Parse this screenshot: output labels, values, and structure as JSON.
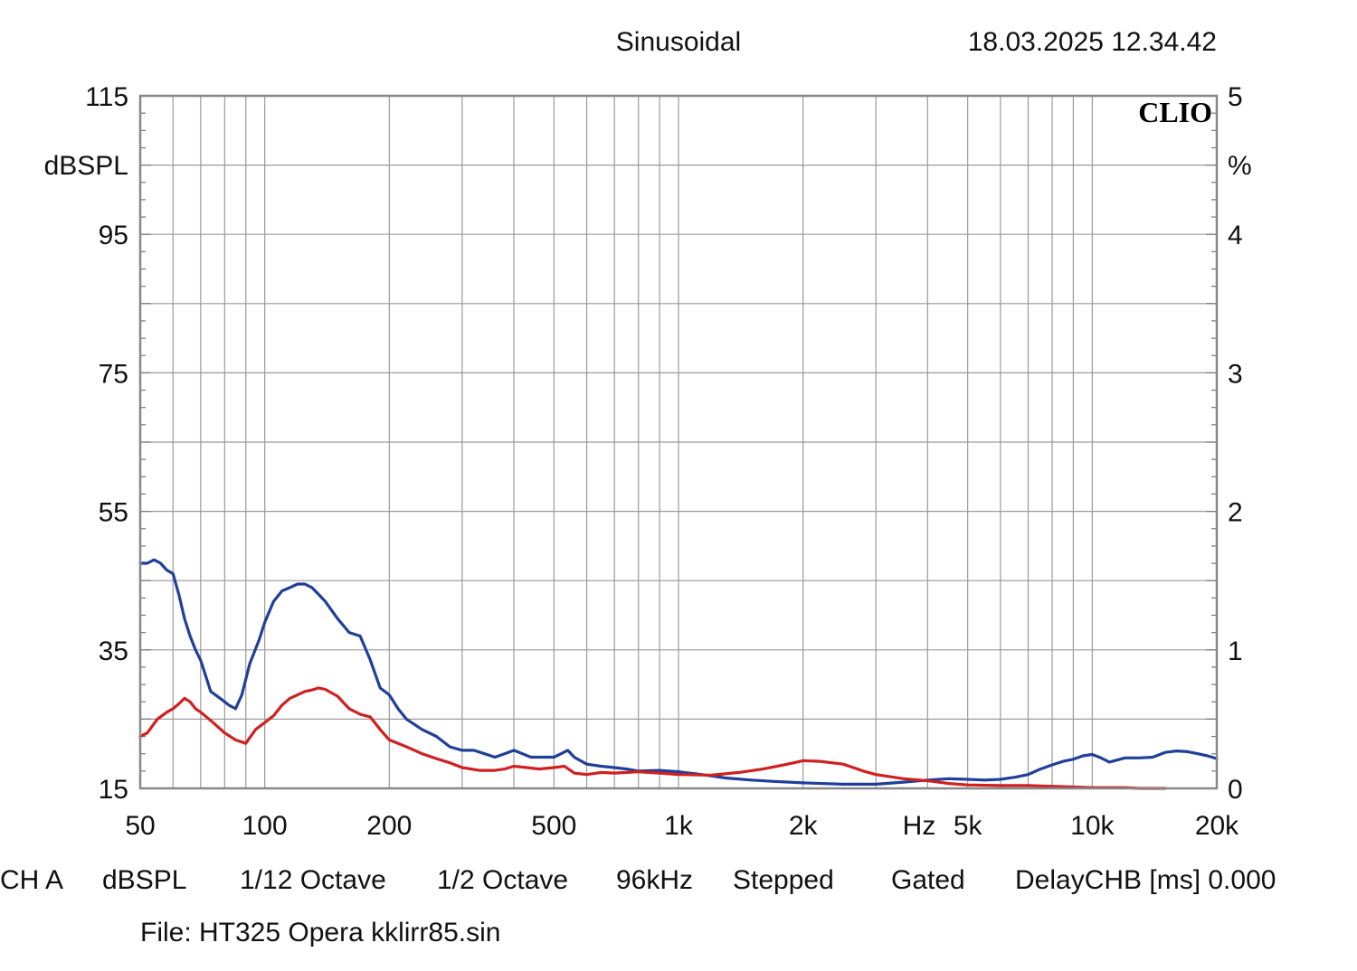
{
  "header": {
    "title": "Sinusoidal",
    "timestamp": "18.03.2025 12.34.42",
    "brand": "CLIO"
  },
  "footer": {
    "settings": [
      "CH A",
      "dBSPL",
      "1/12 Octave",
      "1/2 Octave",
      "96kHz",
      "Stepped",
      "Gated",
      "DelayCHB [ms] 0.000"
    ],
    "file": "File: HT325 Opera kklirr85.sin"
  },
  "chart_data": {
    "type": "line",
    "x_scale": "log",
    "xlim": [
      50,
      20000
    ],
    "ylim": [
      15,
      115
    ],
    "y2lim": [
      0,
      5
    ],
    "grid": true,
    "ylabel": "dBSPL",
    "y2label": "%",
    "xlabel": "Hz",
    "x_ticks": [
      {
        "value": 50,
        "label": "50"
      },
      {
        "value": 100,
        "label": "100"
      },
      {
        "value": 200,
        "label": "200"
      },
      {
        "value": 500,
        "label": "500"
      },
      {
        "value": 1000,
        "label": "1k"
      },
      {
        "value": 2000,
        "label": "2k"
      },
      {
        "value": 5000,
        "label": "5k"
      },
      {
        "value": 10000,
        "label": "10k"
      },
      {
        "value": 20000,
        "label": "20k"
      }
    ],
    "y_ticks": [
      115,
      95,
      75,
      55,
      35,
      15
    ],
    "y2_ticks": [
      5,
      4,
      3,
      2,
      1,
      0
    ],
    "series": [
      {
        "color": "#1f3f9a",
        "x": [
          50,
          52,
          54,
          56,
          58,
          60,
          62,
          64,
          66,
          68,
          70,
          74,
          78,
          82,
          85,
          88,
          92,
          97,
          100,
          105,
          110,
          115,
          120,
          125,
          130,
          135,
          140,
          150,
          160,
          170,
          180,
          190,
          200,
          210,
          220,
          240,
          260,
          280,
          300,
          320,
          340,
          360,
          380,
          400,
          420,
          440,
          460,
          480,
          500,
          520,
          540,
          560,
          600,
          650,
          700,
          750,
          800,
          900,
          1000,
          1100,
          1200,
          1300,
          1500,
          1700,
          2000,
          2500,
          3000,
          3500,
          4000,
          4500,
          5000,
          5500,
          6000,
          6500,
          7000,
          7500,
          8000,
          8500,
          9000,
          9500,
          10000,
          10500,
          11000,
          12000,
          13000,
          14000,
          15000,
          16000,
          17000,
          18000,
          19000,
          20000
        ],
        "values": [
          47.5,
          47.5,
          48,
          47.5,
          46.5,
          46,
          43,
          39.5,
          37,
          35,
          33.5,
          29,
          28,
          27,
          26.5,
          28.5,
          33,
          36.5,
          39,
          42,
          43.5,
          44,
          44.5,
          44.5,
          44,
          43,
          42,
          39.5,
          37.5,
          37,
          33.5,
          29.5,
          28.5,
          26.5,
          25,
          23.5,
          22.5,
          21,
          20.5,
          20.5,
          20,
          19.5,
          20,
          20.5,
          20,
          19.5,
          19.5,
          19.5,
          19.5,
          20,
          20.5,
          19.5,
          18.5,
          18.2,
          18,
          17.8,
          17.5,
          17.6,
          17.4,
          17.1,
          16.8,
          16.5,
          16.2,
          16,
          15.8,
          15.6,
          15.6,
          15.9,
          16.2,
          16.4,
          16.3,
          16.2,
          16.3,
          16.6,
          17,
          17.8,
          18.4,
          18.9,
          19.2,
          19.7,
          19.9,
          19.4,
          18.8,
          19.4,
          19.4,
          19.5,
          20.2,
          20.4,
          20.3,
          20.0,
          19.7,
          19.3
        ]
      },
      {
        "color": "#d02020",
        "x": [
          50,
          52,
          55,
          58,
          60,
          62,
          64,
          66,
          68,
          70,
          75,
          80,
          85,
          90,
          95,
          100,
          105,
          110,
          115,
          120,
          125,
          130,
          135,
          140,
          150,
          160,
          170,
          180,
          190,
          200,
          210,
          220,
          240,
          260,
          280,
          300,
          330,
          360,
          380,
          400,
          430,
          460,
          500,
          530,
          560,
          600,
          650,
          700,
          800,
          900,
          1000,
          1200,
          1400,
          1600,
          1800,
          2000,
          2200,
          2500,
          2800,
          3000,
          3500,
          4000,
          4500,
          5000,
          6000,
          7000,
          8000,
          9000,
          10000,
          11000,
          12000,
          13000,
          14000,
          15000
        ],
        "values": [
          22.5,
          23,
          25,
          26,
          26.5,
          27.2,
          28,
          27.5,
          26.5,
          26,
          24.5,
          23,
          22,
          21.5,
          23.5,
          24.5,
          25.5,
          27,
          28,
          28.5,
          29,
          29.2,
          29.5,
          29.3,
          28.3,
          26.5,
          25.7,
          25.3,
          23.5,
          22,
          21.5,
          21,
          20,
          19.3,
          18.7,
          18,
          17.6,
          17.6,
          17.8,
          18.2,
          18,
          17.8,
          18,
          18.2,
          17.2,
          17,
          17.3,
          17.2,
          17.4,
          17.2,
          17,
          16.9,
          17.3,
          17.8,
          18.4,
          19,
          18.9,
          18.5,
          17.5,
          17,
          16.4,
          16.1,
          15.7,
          15.5,
          15.4,
          15.4,
          15.3,
          15.2,
          15.1,
          15.1,
          15.1,
          15.0,
          15.0,
          15.0
        ]
      }
    ]
  }
}
